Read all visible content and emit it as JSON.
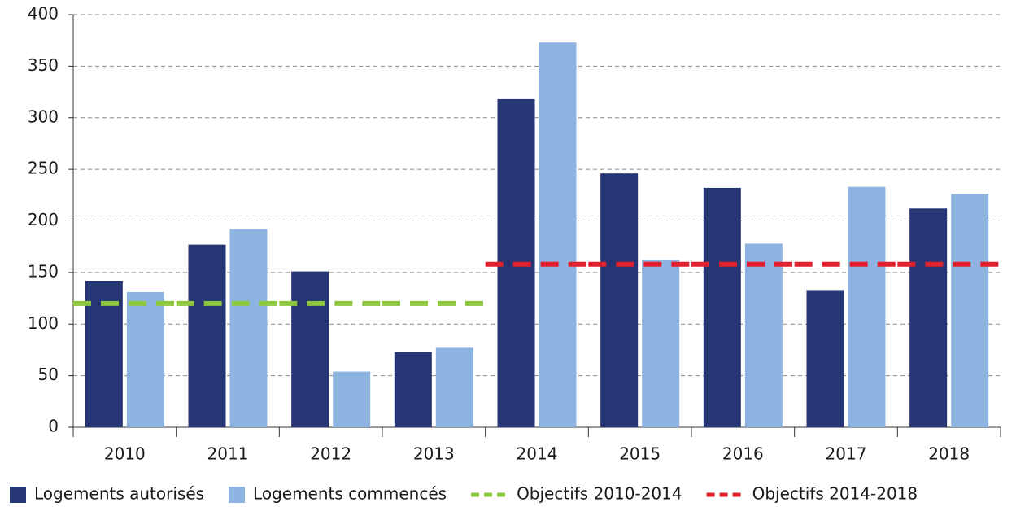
{
  "chart_data": {
    "type": "bar",
    "categories": [
      "2010",
      "2011",
      "2012",
      "2013",
      "2014",
      "2015",
      "2016",
      "2017",
      "2018"
    ],
    "series": [
      {
        "name": "Logements autorisés",
        "color": "#263574",
        "values": [
          142,
          177,
          151,
          73,
          318,
          246,
          232,
          133,
          212
        ]
      },
      {
        "name": "Logements commencés",
        "color": "#8db4e0",
        "values": [
          131,
          192,
          54,
          77,
          373,
          162,
          178,
          233,
          226
        ]
      },
      {
        "name": "Objectifs 2010-2014",
        "type": "line",
        "color": "#8dc63f",
        "values": [
          120,
          120,
          120,
          120,
          null,
          null,
          null,
          null,
          null
        ]
      },
      {
        "name": "Objectifs 2014-2018",
        "type": "line",
        "color": "#e41e2b",
        "values": [
          null,
          null,
          null,
          null,
          158,
          158,
          158,
          158,
          158
        ]
      }
    ],
    "ylim": [
      0,
      400
    ],
    "yticks": [
      0,
      50,
      100,
      150,
      200,
      250,
      300,
      350,
      400
    ],
    "grid": true,
    "legend": "bottom"
  }
}
